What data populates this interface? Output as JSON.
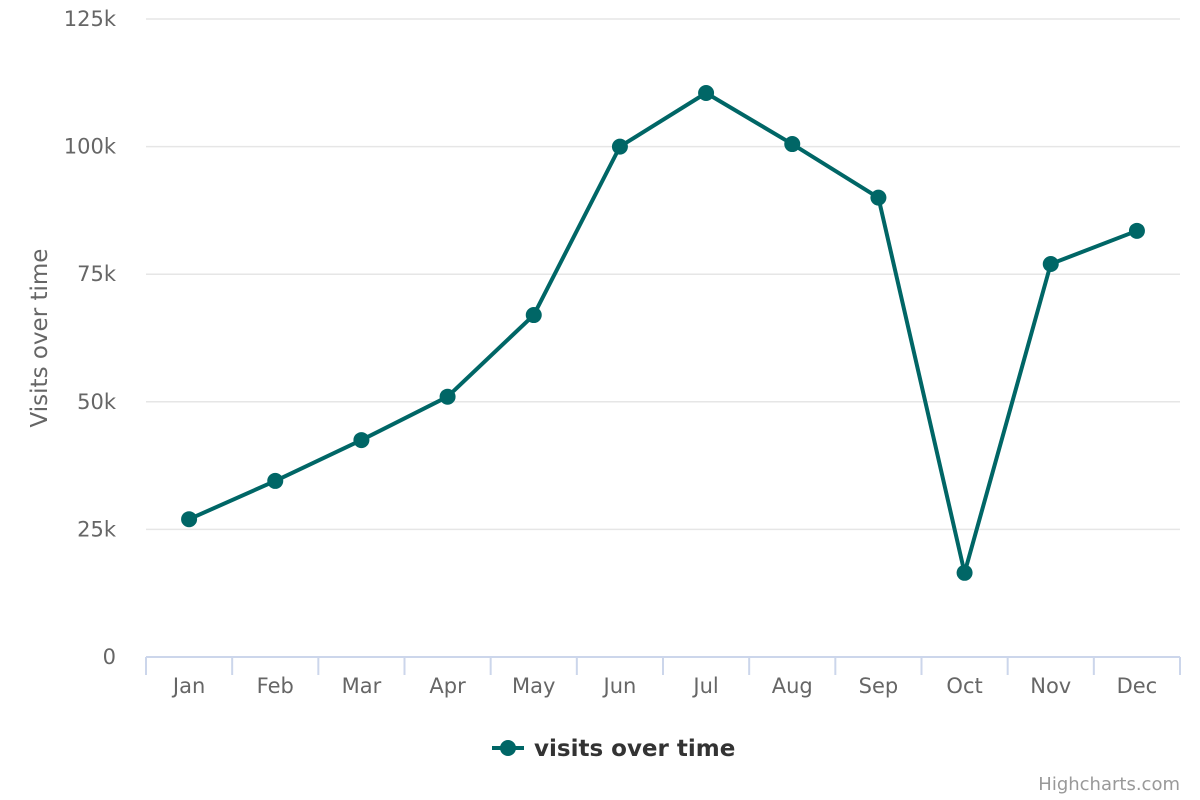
{
  "chart_data": {
    "type": "line",
    "title": "",
    "xlabel": "",
    "ylabel": "Visits over time",
    "categories": [
      "Jan",
      "Feb",
      "Mar",
      "Apr",
      "May",
      "Jun",
      "Jul",
      "Aug",
      "Sep",
      "Oct",
      "Nov",
      "Dec"
    ],
    "series": [
      {
        "name": "visits over time",
        "color": "#006666",
        "values": [
          27000,
          34500,
          42500,
          51000,
          67000,
          100000,
          110500,
          100500,
          90000,
          16500,
          77000,
          83500
        ]
      }
    ],
    "ylim": [
      0,
      125000
    ],
    "yticks": [
      0,
      25000,
      50000,
      75000,
      100000,
      125000
    ],
    "ytick_labels": [
      "0",
      "25k",
      "50k",
      "75k",
      "100k",
      "125k"
    ],
    "grid": true,
    "legend_position": "bottom-center"
  },
  "credits": "Highcharts.com"
}
